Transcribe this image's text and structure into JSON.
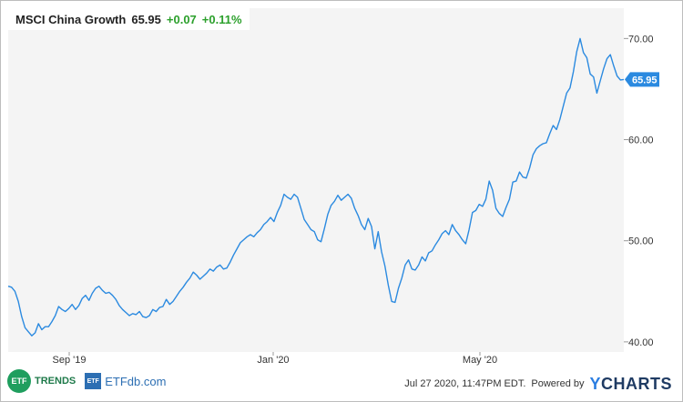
{
  "header": {
    "name": "MSCI China Growth",
    "price": "65.95",
    "change": "+0.07",
    "change_pct": "+0.11%"
  },
  "colors": {
    "line": "#2b8ae0",
    "positive": "#2ca02c",
    "badge": "#2b8ae0"
  },
  "footer": {
    "timestamp": "Jul 27 2020, 11:47PM EDT.",
    "powered_by": "Powered by",
    "ycharts_y": "Y",
    "ycharts_rest": "CHARTS",
    "etf_badge": "ETF",
    "etf_trends": "TRENDS",
    "etfdb_badge": "ETF",
    "etfdb": "ETFdb.com"
  },
  "chart_data": {
    "type": "line",
    "title": "MSCI China Growth",
    "ylim": [
      39,
      73
    ],
    "y_ticks": [
      40,
      50,
      60,
      70
    ],
    "y_tick_labels": [
      "40.00",
      "50.00",
      "60.00",
      "70.00"
    ],
    "x_ticks": [
      "Sep '19",
      "Jan '20",
      "May '20"
    ],
    "last_value_label": "65.95",
    "grid": false,
    "series": [
      {
        "values": [
          45.5,
          45.4,
          45.0,
          44.0,
          42.5,
          41.4,
          41.0,
          40.6,
          40.9,
          41.8,
          41.2,
          41.5,
          41.5,
          42.0,
          42.6,
          43.5,
          43.2,
          43.0,
          43.3,
          43.7,
          43.2,
          43.6,
          44.3,
          44.6,
          44.1,
          44.8,
          45.3,
          45.5,
          45.1,
          44.8,
          44.9,
          44.6,
          44.2,
          43.6,
          43.2,
          42.9,
          42.6,
          42.8,
          42.7,
          43.0,
          42.5,
          42.4,
          42.6,
          43.2,
          43.0,
          43.4,
          43.5,
          44.2,
          43.7,
          44.0,
          44.5,
          45.0,
          45.4,
          45.9,
          46.3,
          46.9,
          46.6,
          46.2,
          46.5,
          46.8,
          47.2,
          47.0,
          47.4,
          47.6,
          47.2,
          47.3,
          47.9,
          48.6,
          49.2,
          49.8,
          50.1,
          50.4,
          50.6,
          50.4,
          50.8,
          51.1,
          51.6,
          51.9,
          52.3,
          51.9,
          52.8,
          53.5,
          54.6,
          54.3,
          54.1,
          54.6,
          54.3,
          53.2,
          52.1,
          51.6,
          51.1,
          50.9,
          50.1,
          49.9,
          51.2,
          52.6,
          53.5,
          53.9,
          54.5,
          54.0,
          54.3,
          54.6,
          54.2,
          53.2,
          52.5,
          51.6,
          51.1,
          52.2,
          51.4,
          49.2,
          50.9,
          48.9,
          47.5,
          45.6,
          44.0,
          43.9,
          45.3,
          46.3,
          47.6,
          48.1,
          47.2,
          47.1,
          47.6,
          48.4,
          48.0,
          48.8,
          49.0,
          49.6,
          50.1,
          50.7,
          51.0,
          50.6,
          51.6,
          51.0,
          50.6,
          50.1,
          49.7,
          51.1,
          52.8,
          53.0,
          53.6,
          53.4,
          54.1,
          55.9,
          55.0,
          53.2,
          52.7,
          52.4,
          53.3,
          54.1,
          55.8,
          55.9,
          56.8,
          56.3,
          56.2,
          57.2,
          58.5,
          59.1,
          59.4,
          59.6,
          59.7,
          60.6,
          61.4,
          61.0,
          62.0,
          63.3,
          64.6,
          65.1,
          66.7,
          68.7,
          70.0,
          68.6,
          68.1,
          66.5,
          66.2,
          64.6,
          65.8,
          67.0,
          68.0,
          68.4,
          67.3,
          66.3,
          65.9,
          65.95
        ]
      }
    ]
  }
}
